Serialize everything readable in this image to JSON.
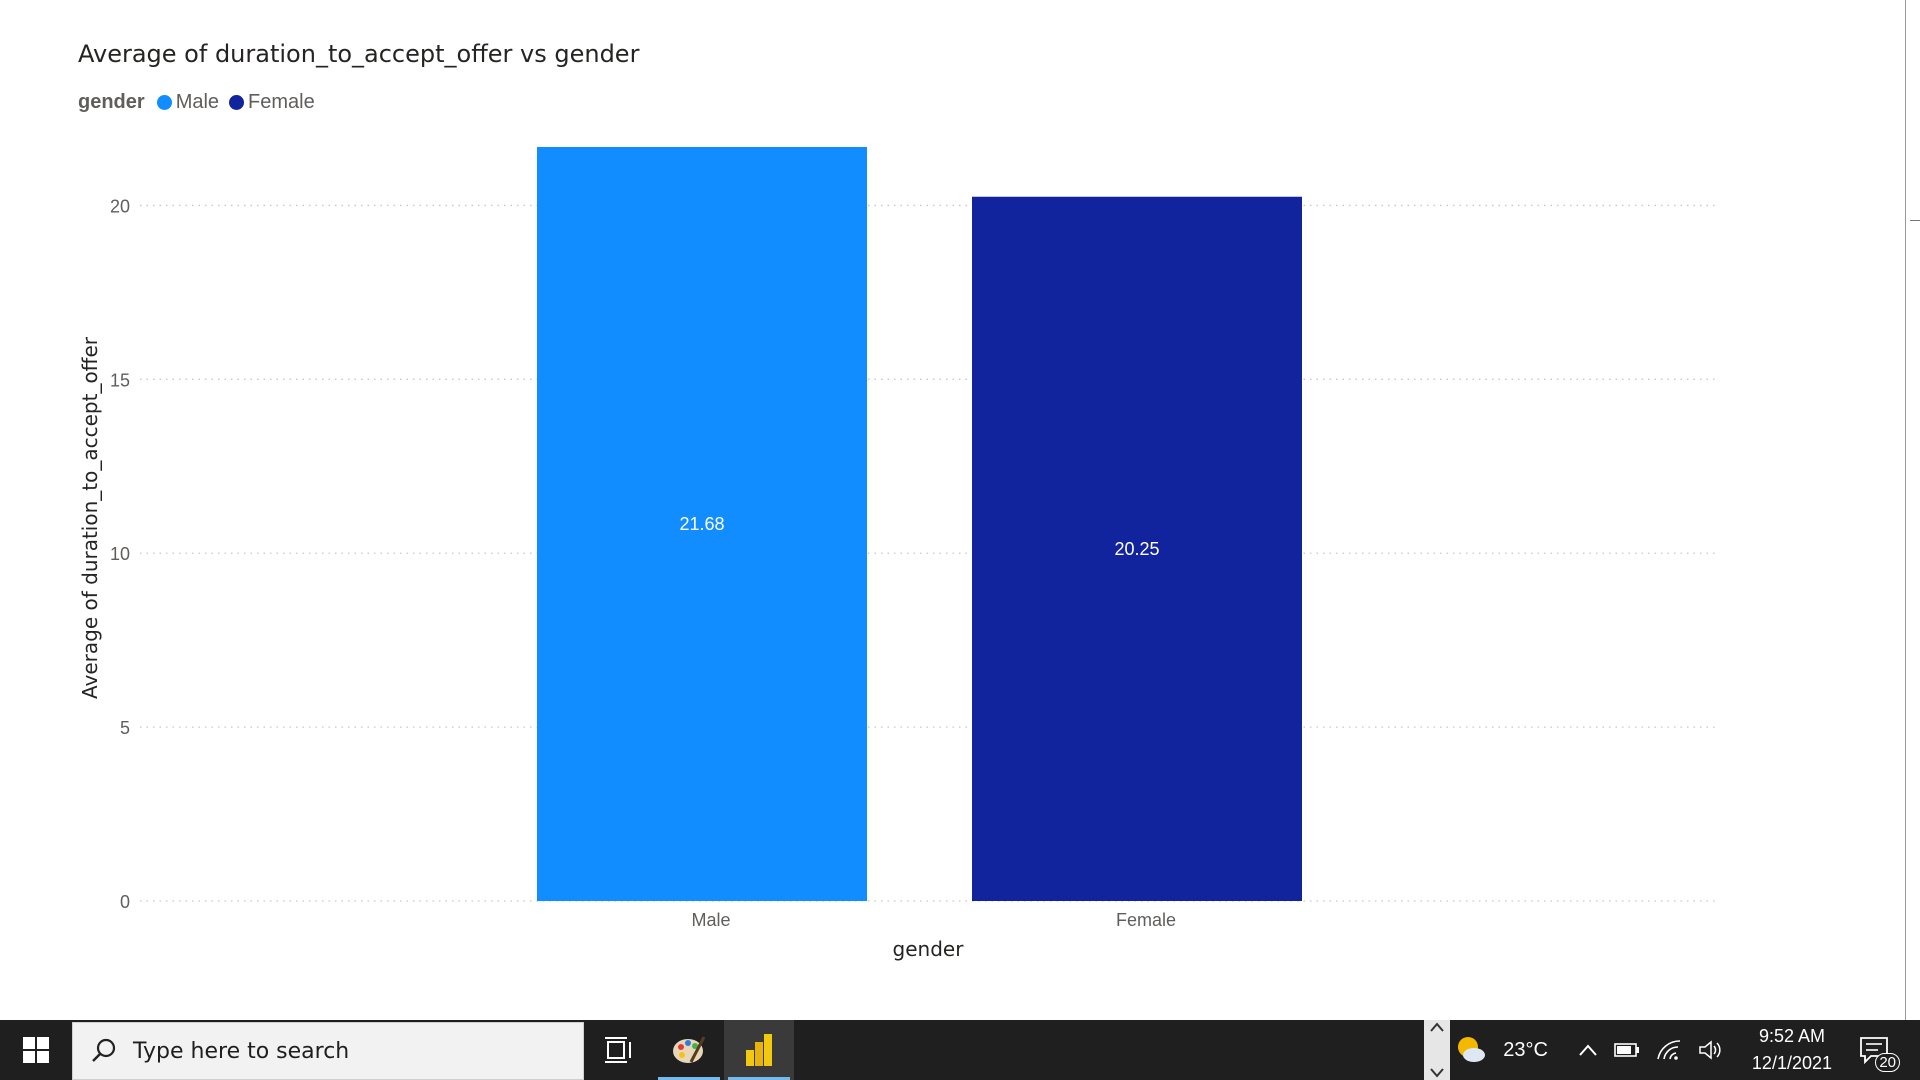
{
  "chart_data": {
    "type": "bar",
    "title": "Average of duration_to_accept_offer vs gender",
    "legend_title": "gender",
    "legend": [
      {
        "name": "Male",
        "color": "#118dff"
      },
      {
        "name": "Female",
        "color": "#12239e"
      }
    ],
    "categories": [
      "Male",
      "Female"
    ],
    "values": [
      21.68,
      20.25
    ],
    "data_labels": [
      "21.68",
      "20.25"
    ],
    "colors": [
      "#118dff",
      "#12239e"
    ],
    "xlabel": "gender",
    "ylabel": "Average of duration_to_accept_offer",
    "yticks": [
      "0",
      "5",
      "10",
      "15",
      "20"
    ],
    "ylim": [
      0,
      21.68
    ],
    "grid": true,
    "legend_position": "top-left"
  },
  "taskbar": {
    "search_placeholder": "Type here to search",
    "weather_temp": "23°C",
    "time": "9:52 AM",
    "date": "12/1/2021",
    "notification_count": "20"
  }
}
